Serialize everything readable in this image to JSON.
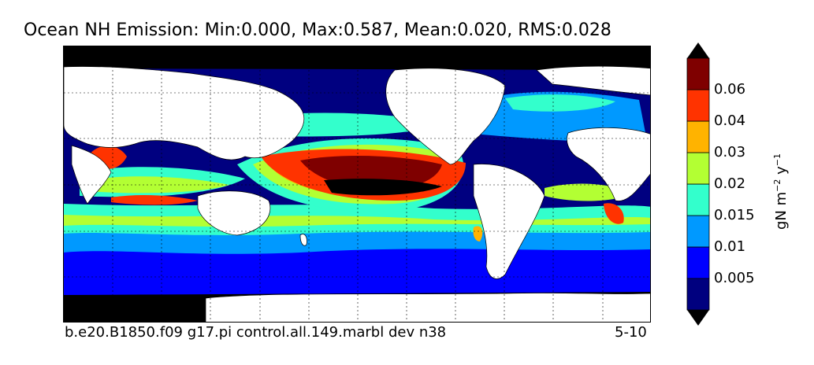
{
  "title": "Ocean NH Emission: Min:0.000, Max:0.587, Mean:0.020, RMS:0.028",
  "footer": {
    "case_name": "b.e20.B1850.f09 g17.pi control.all.149.marbl dev n38",
    "years": "5-10"
  },
  "colorbar": {
    "units": {
      "base": "gN m",
      "exp1": "−2",
      "mid": " y",
      "exp2": "−1"
    },
    "labels": [
      "0.005",
      "0.01",
      "0.015",
      "0.02",
      "0.03",
      "0.04",
      "0.06"
    ],
    "colors": [
      "#00007f",
      "#0000ff",
      "#0099ff",
      "#33ffcc",
      "#b3ff33",
      "#ffb300",
      "#ff3300",
      "#7f0000"
    ],
    "extend": "both"
  },
  "map": {
    "land_color": "#ffffff",
    "grid": true,
    "low_color": "#000000"
  }
}
